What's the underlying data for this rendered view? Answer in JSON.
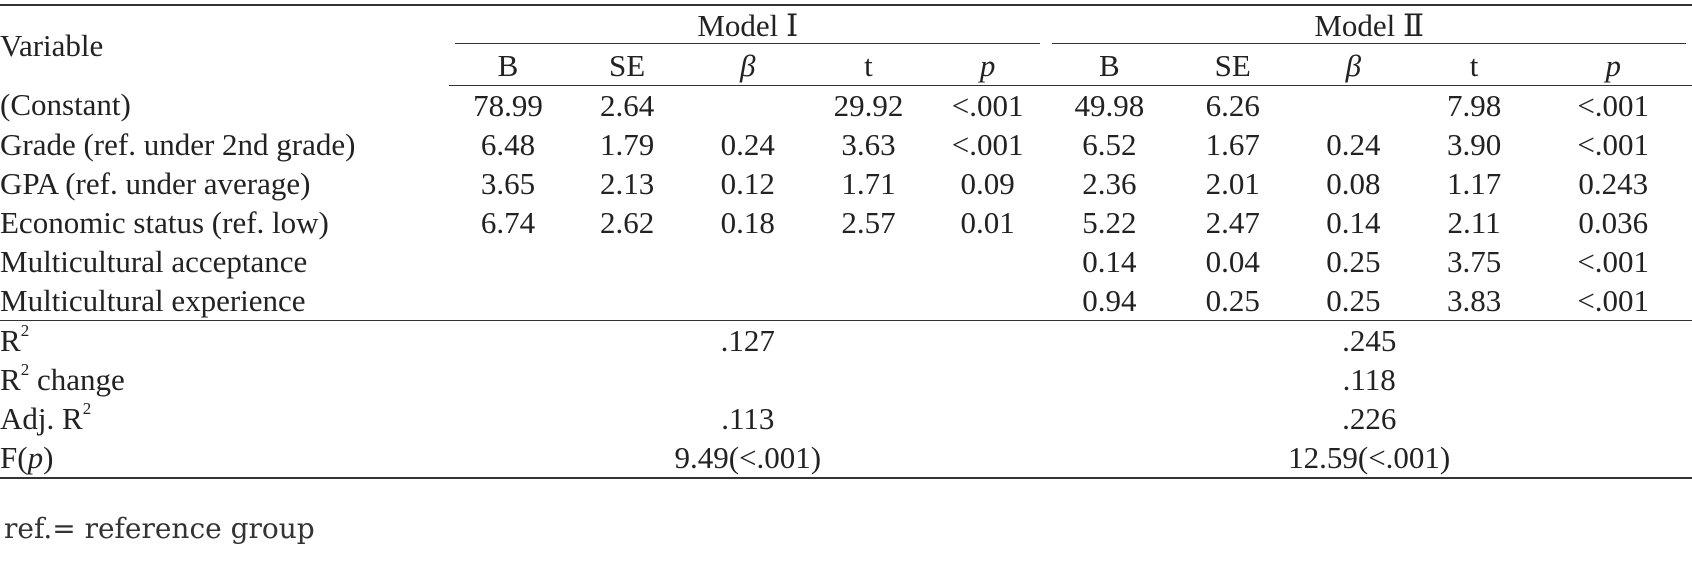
{
  "table": {
    "variable_header": "Variable",
    "model1_label": "Model Ⅰ",
    "model2_label": "Model Ⅱ",
    "subheaders": [
      "B",
      "SE",
      "β",
      "t",
      "p"
    ],
    "rows": [
      {
        "variable": "(Constant)",
        "m1": [
          "78.99",
          "2.64",
          "",
          "29.92",
          "<.001"
        ],
        "m2": [
          "49.98",
          "6.26",
          "",
          "7.98",
          "<.001"
        ]
      },
      {
        "variable": "Grade (ref. under 2nd grade)",
        "m1": [
          "6.48",
          "1.79",
          "0.24",
          "3.63",
          "<.001"
        ],
        "m2": [
          "6.52",
          "1.67",
          "0.24",
          "3.90",
          "<.001"
        ]
      },
      {
        "variable": "GPA (ref. under average)",
        "m1": [
          "3.65",
          "2.13",
          "0.12",
          "1.71",
          "0.09"
        ],
        "m2": [
          "2.36",
          "2.01",
          "0.08",
          "1.17",
          "0.243"
        ]
      },
      {
        "variable": "Economic status (ref. low)",
        "m1": [
          "6.74",
          "2.62",
          "0.18",
          "2.57",
          "0.01"
        ],
        "m2": [
          "5.22",
          "2.47",
          "0.14",
          "2.11",
          "0.036"
        ]
      },
      {
        "variable": "Multicultural acceptance",
        "m1": [
          "",
          "",
          "",
          "",
          ""
        ],
        "m2": [
          "0.14",
          "0.04",
          "0.25",
          "3.75",
          "<.001"
        ]
      },
      {
        "variable": "Multicultural experience",
        "m1": [
          "",
          "",
          "",
          "",
          ""
        ],
        "m2": [
          "0.94",
          "0.25",
          "0.25",
          "3.83",
          "<.001"
        ]
      }
    ],
    "stats": {
      "r2": {
        "label_main": "R",
        "label_sup": "2",
        "label_suffix": "",
        "m1": ".127",
        "m2": ".245"
      },
      "r2_change": {
        "label_main": "R",
        "label_sup": "2",
        "label_suffix": " change",
        "m1": "",
        "m2": ".118"
      },
      "adj_r2": {
        "label_main": "Adj. R",
        "label_sup": "2",
        "label_suffix": "",
        "m1": ".113",
        "m2": ".226"
      },
      "f": {
        "label_main": "F(",
        "label_italic": "p",
        "label_suffix": ")",
        "m1": "9.49(<.001)",
        "m2": "12.59(<.001)"
      }
    }
  },
  "footnote": "ref.= reference group"
}
